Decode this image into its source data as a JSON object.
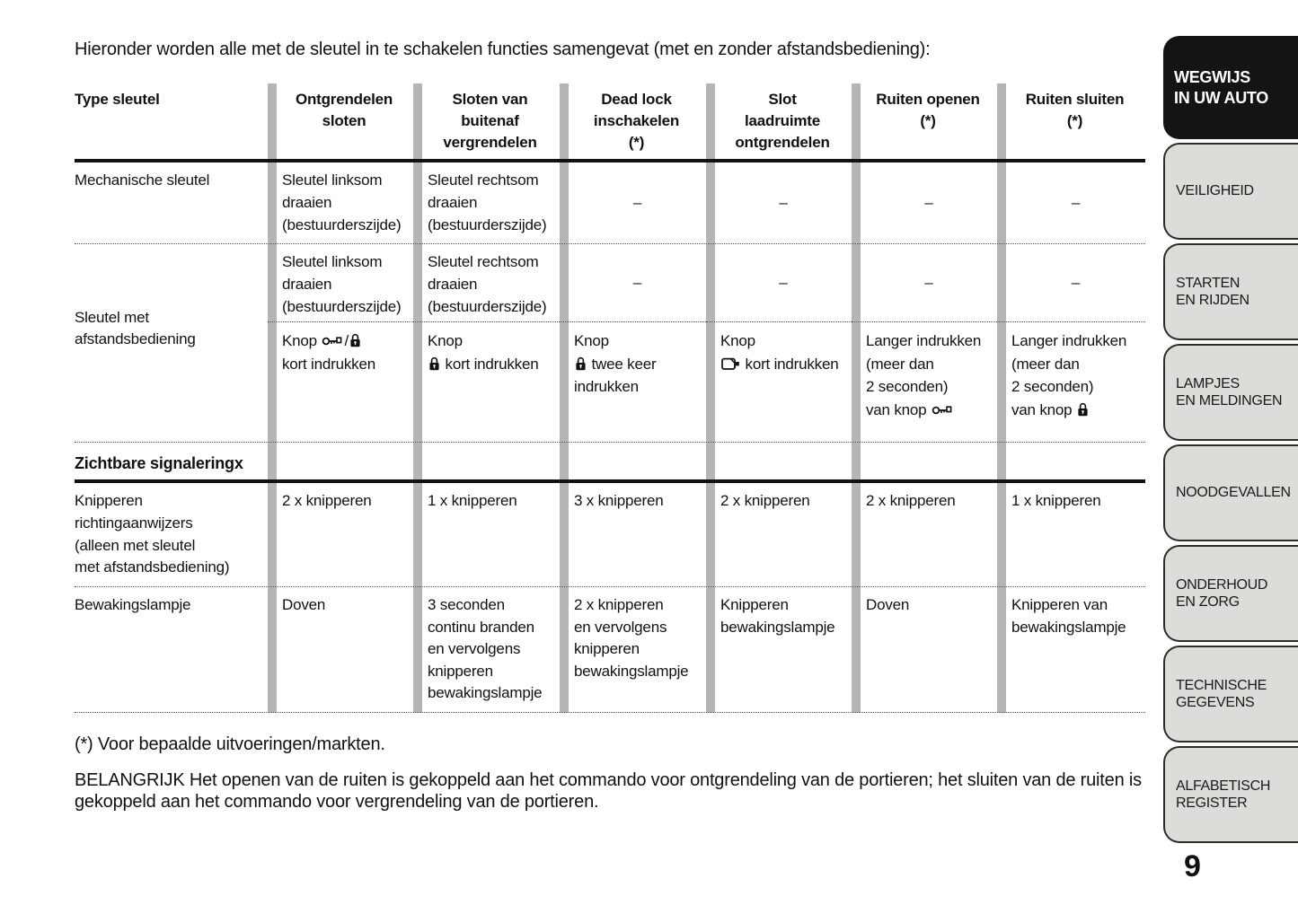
{
  "intro": "Hieronder worden alle met de sleutel in te schakelen functies samengevat (met en zonder afstandsbediening):",
  "table": {
    "headers": [
      "Type sleutel",
      "Ontgrendelen\nsloten",
      "Sloten van\nbuitenaf\nvergrendelen",
      "Dead lock\ninschakelen\n(*)",
      "Slot\nlaadruimte\nontgrendelen",
      "Ruiten openen\n(*)",
      "Ruiten sluiten\n(*)"
    ],
    "dash": "–",
    "row_mech": {
      "label": "Mechanische sleutel",
      "unlock": "Sleutel linksom\ndraaien\n(bestuurderszijde)",
      "lock_outside": "Sleutel rechtsom\ndraaien\n(bestuurderszijde)"
    },
    "row_remote": {
      "label": "Sleutel met\nafstandsbediening",
      "key_turn": {
        "unlock": "Sleutel linksom\ndraaien\n(bestuurderszijde)",
        "lock_outside": "Sleutel rechtsom\ndraaien\n(bestuurderszijde)"
      },
      "buttons": {
        "unlock": [
          [
            "Knop ",
            {
              "icon": "key-icon"
            },
            "/",
            {
              "icon": "lock-icon"
            }
          ],
          [
            "kort indrukken"
          ]
        ],
        "lock_outside": [
          [
            "Knop"
          ],
          [
            {
              "icon": "lock-icon"
            },
            " kort indrukken"
          ]
        ],
        "dead_lock": [
          [
            "Knop"
          ],
          [
            {
              "icon": "lock-icon"
            },
            " twee keer"
          ],
          [
            "indrukken"
          ]
        ],
        "boot": [
          [
            "Knop"
          ],
          [
            {
              "icon": "trunk-icon"
            },
            " kort indrukken"
          ]
        ],
        "windows_open": [
          [
            "Langer indrukken"
          ],
          [
            "(meer dan"
          ],
          [
            "2 seconden)"
          ],
          [
            "van knop ",
            {
              "icon": "key-icon"
            }
          ]
        ],
        "windows_close": [
          [
            "Langer indrukken"
          ],
          [
            "(meer dan"
          ],
          [
            "2 seconden)"
          ],
          [
            "van knop ",
            {
              "icon": "lock-icon"
            }
          ]
        ]
      }
    },
    "section": "Zichtbare signaleringx",
    "row_indicators": {
      "label": "Knipperen\nrichtingaanwijzers\n(alleen met sleutel\nmet afstandsbediening)",
      "values": [
        "2 x knipperen",
        "1 x knipperen",
        "3 x knipperen",
        "2 x knipperen",
        "2 x knipperen",
        "1 x knipperen"
      ]
    },
    "row_warning_lamp": {
      "label": "Bewakingslampje",
      "values": [
        "Doven",
        "3 seconden\ncontinu branden\nen vervolgens\nknipperen\nbewakingslampje",
        "2 x knipperen\nen vervolgens\nknipperen\nbewakingslampje",
        "Knipperen\nbewakingslampje",
        "Doven",
        "Knipperen van\nbewakingslampje"
      ]
    }
  },
  "footnote": "(*) Voor bepaalde uitvoeringen/markten.",
  "important": "BELANGRIJK Het openen van de ruiten is gekoppeld aan het commando voor ontgrendeling van de portieren; het sluiten van de ruiten is gekoppeld aan het commando voor vergrendeling van de portieren.",
  "sidebar": {
    "tabs": [
      {
        "label": "WEGWIJS\nIN UW AUTO",
        "active": true
      },
      {
        "label": "VEILIGHEID",
        "active": false
      },
      {
        "label": "STARTEN\nEN RIJDEN",
        "active": false
      },
      {
        "label": "LAMPJES\nEN MELDINGEN",
        "active": false
      },
      {
        "label": "NOODGEVALLEN",
        "active": false
      },
      {
        "label": "ONDERHOUD\nEN ZORG",
        "active": false
      },
      {
        "label": "TECHNISCHE\nGEGEVENS",
        "active": false
      },
      {
        "label": "ALFABETISCH\nREGISTER",
        "active": false
      }
    ]
  },
  "page_number": "9",
  "colors": {
    "text": "#111111",
    "divider_bar": "#b5b5b5",
    "tab_gray": "#dcdcd8",
    "tab_black": "#141414"
  }
}
